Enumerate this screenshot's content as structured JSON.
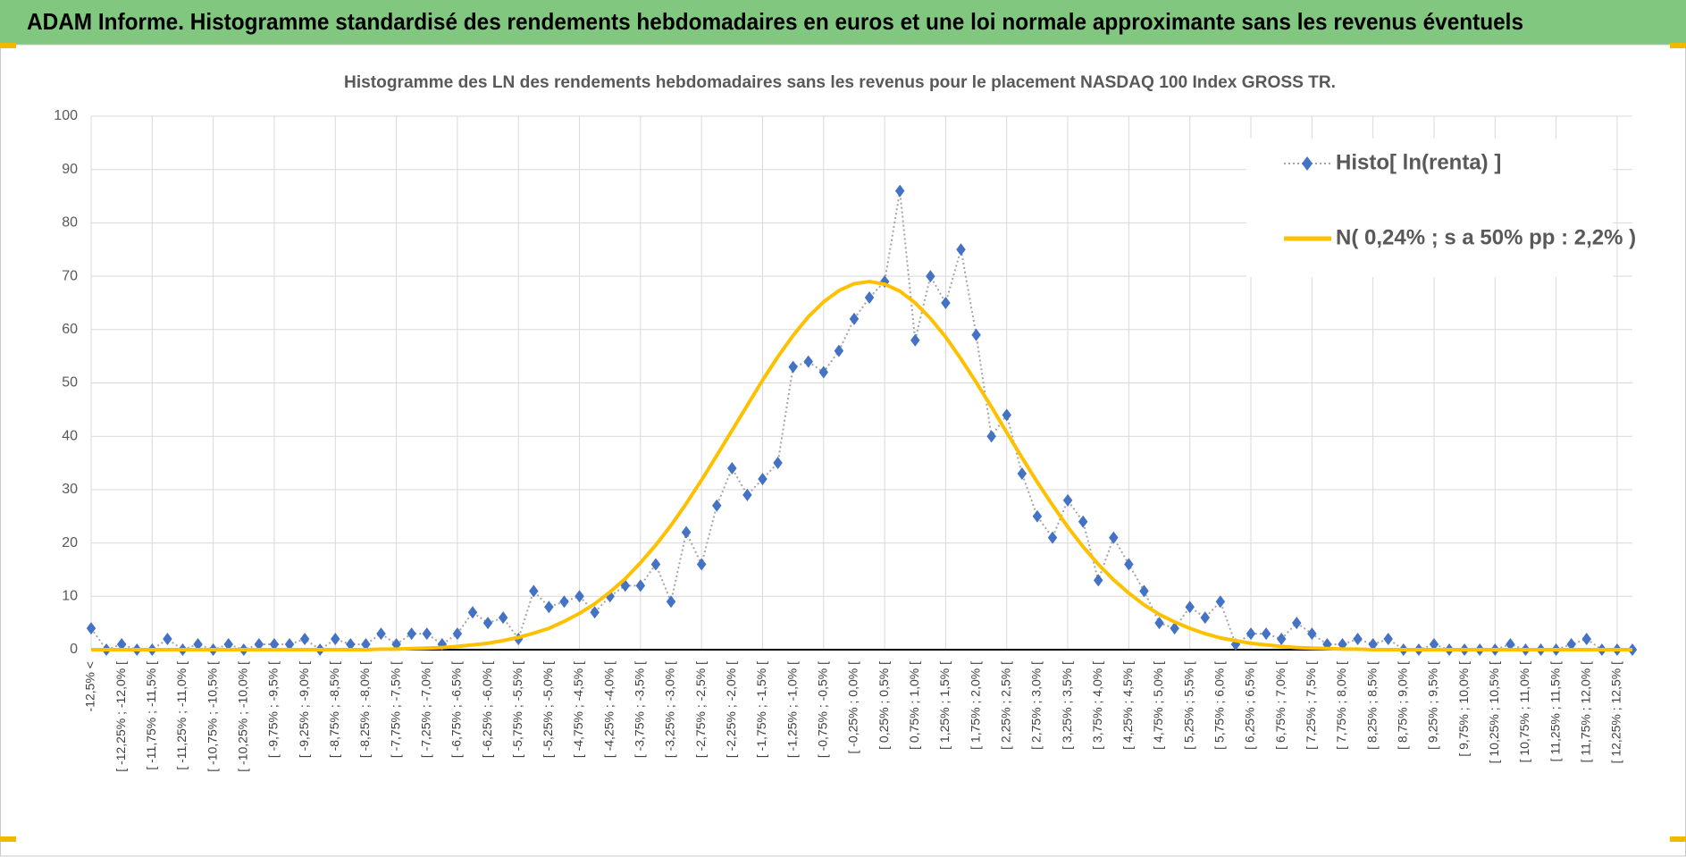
{
  "header": {
    "title": "ADAM Informe. Histogramme standardisé des rendements hebdomadaires en euros et une loi normale approximante sans les revenus éventuels"
  },
  "chart_data": {
    "type": "line",
    "title": "Histogramme  des LN des rendements  hebdomadaires sans les revenus pour le placement NASDAQ 100 Index GROSS TR.",
    "categories": [
      "-12,5% <",
      null,
      "[ -12,25% ; -12,0% [",
      null,
      "[ -11,75% ; -11,5% [",
      null,
      "[ -11,25% ; -11,0% [",
      null,
      "[ -10,75% ; -10,5% [",
      null,
      "[ -10,25% ; -10,0% [",
      null,
      "[ -9,75% ; -9,5% [",
      null,
      "[ -9,25% ; -9,0% [",
      null,
      "[ -8,75% ; -8,5% [",
      null,
      "[ -8,25% ; -8,0% [",
      null,
      "[ -7,75% ; -7,5% [",
      null,
      "[ -7,25% ; -7,0% [",
      null,
      "[ -6,75% ; -6,5% [",
      null,
      "[ -6,25% ; -6,0% [",
      null,
      "[ -5,75% ; -5,5% [",
      null,
      "[ -5,25% ; -5,0% [",
      null,
      "[ -4,75% ; -4,5% [",
      null,
      "[ -4,25% ; -4,0% [",
      null,
      "[ -3,75% ; -3,5% [",
      null,
      "[ -3,25% ; -3,0% [",
      null,
      "[ -2,75% ; -2,5% [",
      null,
      "[ -2,25% ; -2,0% [",
      null,
      "[ -1,75% ; -1,5% [",
      null,
      "[ -1,25% ; -1,0% [",
      null,
      "[ -0,75% ; -0,5% [",
      null,
      "[ -0,25% ; 0,0% [",
      null,
      "[ 0,25% ; 0,5% [",
      null,
      "[ 0,75% ; 1,0% [",
      null,
      "[ 1,25% ; 1,5% [",
      null,
      "[ 1,75% ; 2,0% [",
      null,
      "[ 2,25% ; 2,5% [",
      null,
      "[ 2,75% ; 3,0% [",
      null,
      "[ 3,25% ; 3,5% [",
      null,
      "[ 3,75% ; 4,0% [",
      null,
      "[ 4,25% ; 4,5% [",
      null,
      "[ 4,75% ; 5,0% [",
      null,
      "[ 5,25% ; 5,5% [",
      null,
      "[ 5,75% ; 6,0% [",
      null,
      "[ 6,25% ; 6,5% [",
      null,
      "[ 6,75% ; 7,0% [",
      null,
      "[ 7,25% ; 7,5% [",
      null,
      "[ 7,75% ; 8,0% [",
      null,
      "[ 8,25% ; 8,5% [",
      null,
      "[ 8,75% ; 9,0% [",
      null,
      "[ 9,25% ; 9,5% [",
      null,
      "[ 9,75% ; 10,0% [",
      null,
      "[ 10,25% ; 10,5% [",
      null,
      "[ 10,75% ; 11,0% [",
      null,
      "[ 11,25% ; 11,5% [",
      null,
      "[ 11,75% ; 12,0% [",
      null,
      "[ 12,25% ; 12,5% [",
      null
    ],
    "series": [
      {
        "name": "Histo[ ln(renta) ]",
        "color": "#4472c4",
        "line_color": "#a5a5a5",
        "marker": "diamond",
        "values": [
          4,
          0,
          1,
          0,
          0,
          2,
          0,
          1,
          0,
          1,
          0,
          1,
          1,
          1,
          2,
          0,
          2,
          1,
          1,
          3,
          1,
          3,
          3,
          1,
          3,
          7,
          5,
          6,
          2,
          11,
          8,
          9,
          10,
          7,
          10,
          12,
          12,
          16,
          9,
          22,
          16,
          27,
          34,
          29,
          32,
          35,
          53,
          54,
          52,
          56,
          62,
          66,
          69,
          86,
          58,
          70,
          65,
          75,
          59,
          40,
          44,
          33,
          25,
          21,
          28,
          24,
          13,
          21,
          16,
          11,
          5,
          4,
          8,
          6,
          9,
          1,
          3,
          3,
          2,
          5,
          3,
          1,
          1,
          2,
          1,
          2,
          0,
          0,
          1,
          0,
          0,
          0,
          0,
          1,
          0,
          0,
          0,
          1,
          2,
          0,
          0,
          0
        ]
      },
      {
        "name": "N( 0,24% ; s a 50% pp : 2,2% )",
        "color": "#ffc000",
        "marker": "none",
        "values": [
          0,
          0,
          0,
          0,
          0,
          0,
          0,
          0,
          0,
          0,
          0,
          0,
          0,
          0,
          0,
          0,
          0,
          0,
          0,
          0.1,
          0.1,
          0.2,
          0.3,
          0.4,
          0.6,
          0.9,
          1.2,
          1.7,
          2.3,
          3.1,
          4.0,
          5.3,
          6.8,
          8.6,
          10.8,
          13.3,
          16.3,
          19.6,
          23.3,
          27.4,
          31.8,
          36.4,
          41.1,
          45.8,
          50.5,
          54.9,
          58.9,
          62.4,
          65.2,
          67.3,
          68.6,
          69.0,
          68.5,
          67.2,
          65.0,
          62.1,
          58.6,
          54.5,
          50.1,
          45.5,
          40.7,
          36.0,
          31.4,
          27.1,
          23.0,
          19.3,
          16.0,
          13.1,
          10.6,
          8.4,
          6.6,
          5.2,
          4.0,
          3.0,
          2.2,
          1.7,
          1.2,
          0.9,
          0.6,
          0.4,
          0.3,
          0.2,
          0.1,
          0.1,
          0,
          0,
          0,
          0,
          0,
          0,
          0,
          0,
          0,
          0,
          0,
          0,
          0,
          0,
          0,
          0,
          0,
          0
        ]
      }
    ],
    "ylim": [
      0,
      100
    ],
    "yticks": [
      0,
      10,
      20,
      30,
      40,
      50,
      60,
      70,
      80,
      90,
      100
    ],
    "grid": true,
    "legend": "upper right"
  }
}
